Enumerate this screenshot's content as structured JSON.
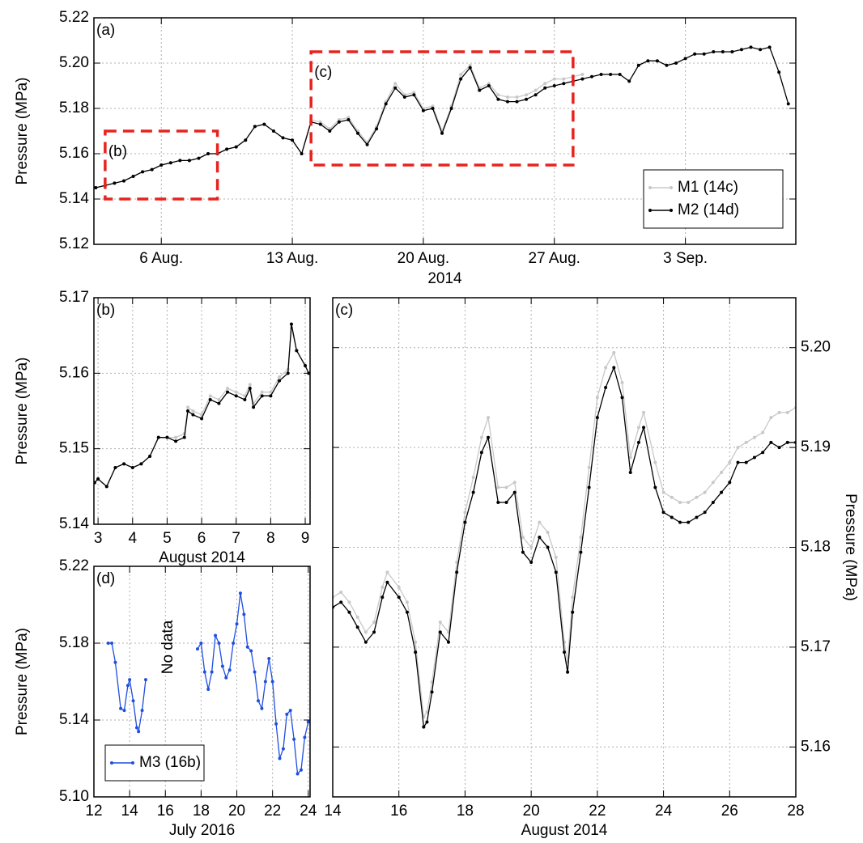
{
  "chart_data": [
    {
      "type": "line",
      "panel_label": "(a)",
      "ylabel": "Pressure (MPa)",
      "xlabel": "2014",
      "x": [
        2.5,
        3,
        3.5,
        4,
        4.5,
        5,
        5.5,
        6,
        6.5,
        7,
        7.5,
        8,
        8.5,
        9,
        9.5,
        10,
        10.5,
        11,
        11.5,
        12,
        12.5,
        13,
        13.5,
        14,
        14.5,
        15,
        15.5,
        16,
        16.5,
        17,
        17.5,
        18,
        18.5,
        19,
        19.5,
        20,
        20.5,
        21,
        21.5,
        22,
        22.5,
        23,
        23.5,
        24,
        24.5,
        25,
        25.5,
        26,
        26.5,
        27,
        27.5,
        28,
        28.5,
        29,
        29.5,
        30,
        30.5,
        31,
        31.5,
        32,
        32.5,
        33,
        33.5,
        34,
        34.5,
        35,
        35.5,
        36,
        36.5,
        37,
        37.5,
        38,
        38.5,
        39,
        39.5
      ],
      "series": [
        {
          "name": "M1 (14c)",
          "color": "#c8c8c8",
          "values": [
            5.145,
            5.146,
            5.147,
            5.148,
            5.15,
            5.152,
            5.153,
            5.155,
            5.156,
            5.157,
            5.157,
            5.158,
            5.16,
            5.16,
            5.162,
            5.163,
            5.166,
            5.172,
            5.173,
            5.17,
            5.167,
            5.166,
            5.16,
            5.175,
            5.174,
            5.171,
            5.175,
            5.176,
            5.17,
            5.165,
            5.172,
            5.183,
            5.191,
            5.186,
            5.187,
            5.18,
            5.181,
            5.17,
            5.181,
            5.195,
            5.199,
            5.189,
            5.191,
            5.186,
            5.185,
            5.185,
            5.186,
            5.188,
            5.191,
            5.193,
            5.193,
            5.194,
            5.195,
            null,
            null,
            null,
            null,
            null,
            null,
            null,
            null,
            null,
            null,
            null,
            null,
            null,
            null,
            null,
            null,
            null,
            null,
            null,
            null,
            null,
            null
          ]
        },
        {
          "name": "M2 (14d)",
          "color": "#000000",
          "values": [
            5.145,
            5.146,
            5.147,
            5.148,
            5.15,
            5.152,
            5.153,
            5.155,
            5.156,
            5.157,
            5.157,
            5.158,
            5.16,
            5.16,
            5.162,
            5.163,
            5.166,
            5.172,
            5.173,
            5.17,
            5.167,
            5.166,
            5.16,
            5.174,
            5.173,
            5.17,
            5.174,
            5.175,
            5.169,
            5.164,
            5.171,
            5.182,
            5.189,
            5.185,
            5.186,
            5.179,
            5.18,
            5.169,
            5.18,
            5.193,
            5.198,
            5.188,
            5.19,
            5.184,
            5.183,
            5.183,
            5.184,
            5.186,
            5.189,
            5.19,
            5.191,
            5.192,
            5.193,
            5.194,
            5.195,
            5.195,
            5.195,
            5.192,
            5.199,
            5.201,
            5.201,
            5.199,
            5.2,
            5.202,
            5.204,
            5.204,
            5.205,
            5.205,
            5.205,
            5.206,
            5.207,
            5.206,
            5.207,
            5.196,
            5.182
          ]
        }
      ],
      "xlim": [
        2.4,
        39.9
      ],
      "xticks": [
        {
          "value": 6,
          "label": "6 Aug."
        },
        {
          "value": 13,
          "label": "13 Aug."
        },
        {
          "value": 20,
          "label": "20 Aug."
        },
        {
          "value": 27,
          "label": "27 Aug."
        },
        {
          "value": 34,
          "label": "3 Sep."
        }
      ],
      "ylim": [
        5.12,
        5.22
      ],
      "yticks": [
        5.12,
        5.14,
        5.16,
        5.18,
        {
          "value": 5.2,
          "label": "5.20"
        },
        5.22
      ],
      "grid": true,
      "legend": "lower right",
      "regions": [
        {
          "label": "(b)",
          "x": [
            3,
            9
          ],
          "y": [
            5.14,
            5.17
          ],
          "color": "#e8231f"
        },
        {
          "label": "(c)",
          "x": [
            14,
            28
          ],
          "y": [
            5.155,
            5.205
          ],
          "color": "#e8231f"
        }
      ]
    },
    {
      "type": "line",
      "panel_label": "(b)",
      "ylabel": "Pressure (MPa)",
      "xlabel": "August 2014",
      "x": [
        2.9,
        3.0,
        3.25,
        3.5,
        3.75,
        4.0,
        4.25,
        4.5,
        4.75,
        5.0,
        5.25,
        5.5,
        5.6,
        5.75,
        6.0,
        6.25,
        6.5,
        6.75,
        7.0,
        7.25,
        7.4,
        7.5,
        7.75,
        8.0,
        8.25,
        8.5,
        8.6,
        8.75,
        9.0,
        9.1
      ],
      "series": [
        {
          "name": "M1 (14c)",
          "color": "#c8c8c8",
          "values": [
            5.1455,
            5.146,
            5.145,
            5.1475,
            5.148,
            5.1475,
            5.148,
            5.149,
            5.1515,
            5.1515,
            5.1515,
            5.152,
            5.1555,
            5.155,
            5.1545,
            5.157,
            5.1565,
            5.158,
            5.1575,
            5.157,
            5.1585,
            5.156,
            5.1575,
            5.1575,
            5.1595,
            5.1605,
            5.166,
            5.163,
            5.161,
            5.16
          ]
        },
        {
          "name": "M2 (14d)",
          "color": "#000000",
          "values": [
            5.1455,
            5.146,
            5.145,
            5.1475,
            5.148,
            5.1475,
            5.148,
            5.149,
            5.1515,
            5.1515,
            5.151,
            5.1515,
            5.155,
            5.1545,
            5.154,
            5.1565,
            5.156,
            5.1575,
            5.157,
            5.1565,
            5.158,
            5.1555,
            5.157,
            5.157,
            5.159,
            5.16,
            5.1665,
            5.163,
            5.161,
            5.16
          ]
        }
      ],
      "xlim": [
        2.88,
        9.14
      ],
      "xticks": [
        3,
        4,
        5,
        6,
        7,
        8,
        9
      ],
      "ylim": [
        5.14,
        5.17
      ],
      "yticks": [
        5.14,
        5.15,
        5.16,
        5.17
      ],
      "grid": true
    },
    {
      "type": "line",
      "panel_label": "(c)",
      "ylabel": "Pressure (MPa)",
      "xlabel": "August 2014",
      "y_axis_side": "right",
      "x": [
        14.0,
        14.25,
        14.5,
        14.75,
        15.0,
        15.25,
        15.5,
        15.65,
        16.0,
        16.25,
        16.5,
        16.75,
        16.85,
        17.0,
        17.25,
        17.5,
        17.75,
        18.0,
        18.25,
        18.5,
        18.7,
        19.0,
        19.25,
        19.5,
        19.75,
        20.0,
        20.25,
        20.5,
        20.75,
        21.0,
        21.1,
        21.25,
        21.5,
        21.75,
        22.0,
        22.25,
        22.5,
        22.75,
        23.0,
        23.25,
        23.4,
        23.75,
        24.0,
        24.25,
        24.5,
        24.75,
        25.0,
        25.25,
        25.5,
        25.75,
        26.0,
        26.25,
        26.5,
        26.75,
        27.0,
        27.25,
        27.5,
        27.75,
        28.0
      ],
      "series": [
        {
          "name": "M1 (14c)",
          "color": "#c8c8c8",
          "values": [
            5.175,
            5.1755,
            5.1745,
            5.173,
            5.1715,
            5.1725,
            5.176,
            5.1775,
            5.176,
            5.1745,
            5.1705,
            5.163,
            5.1635,
            5.1665,
            5.1725,
            5.1715,
            5.1785,
            5.1835,
            5.187,
            5.191,
            5.193,
            5.186,
            5.186,
            5.1865,
            5.181,
            5.18,
            5.1825,
            5.1815,
            5.179,
            5.1705,
            5.1685,
            5.175,
            5.181,
            5.188,
            5.195,
            5.198,
            5.1995,
            5.1965,
            5.189,
            5.192,
            5.1935,
            5.1885,
            5.1855,
            5.185,
            5.1845,
            5.1845,
            5.185,
            5.1855,
            5.1865,
            5.1875,
            5.1885,
            5.19,
            5.1905,
            5.191,
            5.1915,
            5.193,
            5.1935,
            5.1935,
            5.194
          ]
        },
        {
          "name": "M2 (14d)",
          "color": "#000000",
          "values": [
            5.174,
            5.1745,
            5.1735,
            5.172,
            5.1705,
            5.1715,
            5.175,
            5.1765,
            5.175,
            5.1735,
            5.1695,
            5.162,
            5.1625,
            5.1655,
            5.1715,
            5.1705,
            5.1775,
            5.1825,
            5.1855,
            5.1895,
            5.191,
            5.1845,
            5.1845,
            5.1855,
            5.1795,
            5.1785,
            5.181,
            5.18,
            5.1775,
            5.1695,
            5.1675,
            5.1735,
            5.1795,
            5.186,
            5.193,
            5.196,
            5.198,
            5.195,
            5.1875,
            5.1905,
            5.192,
            5.186,
            5.1835,
            5.183,
            5.1825,
            5.1825,
            5.183,
            5.1835,
            5.1845,
            5.1855,
            5.1865,
            5.1885,
            5.1885,
            5.189,
            5.1895,
            5.1905,
            5.19,
            5.1905,
            5.1905
          ]
        }
      ],
      "xlim": [
        14,
        28
      ],
      "xticks": [
        14,
        16,
        18,
        20,
        22,
        24,
        26,
        28
      ],
      "ylim": [
        5.155,
        5.205
      ],
      "yticks": [
        5.16,
        5.17,
        5.18,
        5.19,
        {
          "value": 5.2,
          "label": "5.20"
        }
      ],
      "grid": true
    },
    {
      "type": "line",
      "panel_label": "(d)",
      "ylabel": "Pressure (MPa)",
      "xlabel": "July 2016",
      "annotation": "No data",
      "x": [
        12.8,
        13.0,
        13.2,
        13.5,
        13.7,
        13.9,
        14.0,
        14.2,
        14.4,
        14.5,
        14.7,
        14.9,
        16.0,
        17.8,
        18.0,
        18.2,
        18.4,
        18.6,
        18.8,
        19.0,
        19.2,
        19.4,
        19.6,
        19.8,
        20.0,
        20.2,
        20.4,
        20.6,
        20.8,
        21.0,
        21.2,
        21.4,
        21.6,
        21.8,
        22.0,
        22.2,
        22.4,
        22.6,
        22.8,
        23.0,
        23.2,
        23.4,
        23.6,
        23.8,
        24.0
      ],
      "series": [
        {
          "name": "M3 (16b)",
          "color": "#1f4fe0",
          "values": [
            5.18,
            5.18,
            5.17,
            5.146,
            5.145,
            5.158,
            5.161,
            5.15,
            5.136,
            5.134,
            5.145,
            5.161,
            null,
            5.177,
            5.18,
            5.165,
            5.156,
            5.165,
            5.184,
            5.18,
            5.168,
            5.162,
            5.166,
            5.18,
            5.19,
            5.206,
            5.195,
            5.178,
            5.176,
            5.165,
            5.15,
            5.146,
            5.16,
            5.172,
            5.16,
            5.138,
            5.12,
            5.125,
            5.143,
            5.145,
            5.13,
            5.112,
            5.114,
            5.131,
            5.139
          ]
        }
      ],
      "xlim": [
        12,
        24.1
      ],
      "xticks": [
        12,
        14,
        16,
        18,
        20,
        22,
        24
      ],
      "ylim": [
        5.1,
        5.22
      ],
      "yticks": [
        {
          "value": 5.1,
          "label": "5.10"
        },
        5.14,
        5.18,
        5.22
      ],
      "grid": true,
      "legend": "lower left"
    }
  ]
}
